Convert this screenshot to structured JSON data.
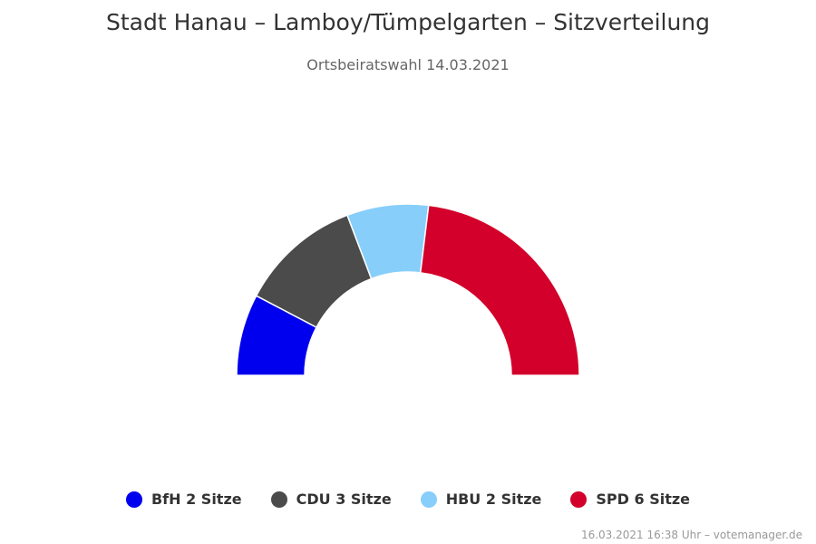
{
  "title": "Stadt Hanau – Lamboy/Tümpelgarten – Sitzverteilung",
  "subtitle": "Ortsbeiratswahl 14.03.2021",
  "credits": "16.03.2021 16:38 Uhr – votemanager.de",
  "chart_data": {
    "type": "pie",
    "variant": "semicircle",
    "title": "Stadt Hanau – Lamboy/Tümpelgarten – Sitzverteilung",
    "subtitle": "Ortsbeiratswahl 14.03.2021",
    "legend_position": "bottom",
    "unit": "Sitze",
    "series": [
      {
        "name": "BfH",
        "value": 2,
        "color": "#0000ee"
      },
      {
        "name": "CDU",
        "value": 3,
        "color": "#4b4b4b"
      },
      {
        "name": "HBU",
        "value": 2,
        "color": "#87cefa"
      },
      {
        "name": "SPD",
        "value": 6,
        "color": "#d2002a"
      }
    ]
  }
}
